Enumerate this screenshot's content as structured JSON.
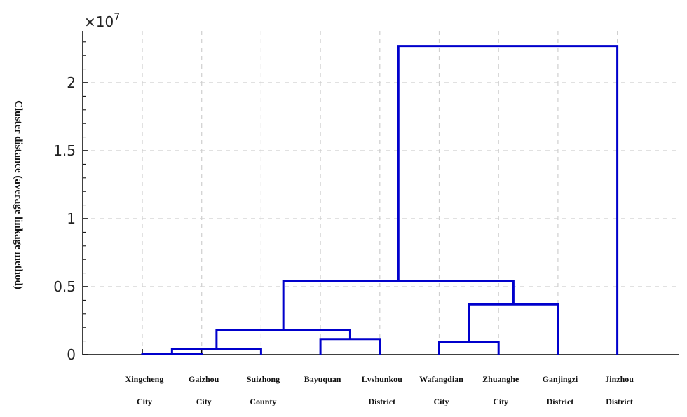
{
  "chart_data": {
    "type": "dendrogram",
    "title": "",
    "ylabel": "Cluster distance (average linkage method)",
    "ylim": [
      0,
      24000000
    ],
    "y_exponent_label": "×10",
    "y_exponent_power": "7",
    "y_ticks": [
      {
        "value": 0,
        "label": "0"
      },
      {
        "value": 5000000,
        "label": "0.5"
      },
      {
        "value": 10000000,
        "label": "1"
      },
      {
        "value": 15000000,
        "label": "1.5"
      },
      {
        "value": 20000000,
        "label": "2"
      }
    ],
    "grid": true,
    "line_color": "#0000cc",
    "leaves": [
      {
        "line1": "Xingcheng",
        "line2": "City"
      },
      {
        "line1": "Gaizhou",
        "line2": "City"
      },
      {
        "line1": "Suizhong",
        "line2": "County"
      },
      {
        "line1": "Bayuquan",
        "line2": ""
      },
      {
        "line1": "Lvshunkou",
        "line2": "District"
      },
      {
        "line1": "Wafangdian",
        "line2": "City"
      },
      {
        "line1": "Zhuanghe",
        "line2": "City"
      },
      {
        "line1": "Ganjingzi",
        "line2": "District"
      },
      {
        "line1": "Jinzhou",
        "line2": "District"
      }
    ],
    "merges": [
      {
        "left": "L0",
        "right": "L1",
        "height": 50000
      },
      {
        "left": "N1",
        "right": "L2",
        "height": 400000
      },
      {
        "left": "L3",
        "right": "L4",
        "height": 1150000
      },
      {
        "left": "L5",
        "right": "L6",
        "height": 950000
      },
      {
        "left": "N2",
        "right": "N3",
        "height": 1800000
      },
      {
        "left": "N4",
        "right": "L7",
        "height": 3700000
      },
      {
        "left": "N5",
        "right": "N6",
        "height": 5400000
      },
      {
        "left": "N7",
        "right": "L8",
        "height": 22700000
      }
    ]
  }
}
